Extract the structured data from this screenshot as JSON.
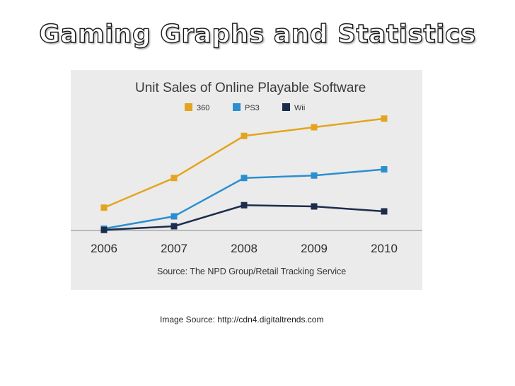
{
  "slide": {
    "title": "Gaming Graphs and Statistics",
    "caption": "Image Source:  http://cdn4.digitaltrends.com"
  },
  "chart_data": {
    "type": "line",
    "title": "Unit Sales of Online Playable Software",
    "xlabel": "",
    "ylabel": "",
    "source": "Source: The NPD Group/Retail Tracking Service",
    "x": [
      "2006",
      "2007",
      "2008",
      "2009",
      "2010"
    ],
    "ylim": [
      0,
      100
    ],
    "grid": false,
    "legend_position": "top",
    "series": [
      {
        "name": "360",
        "color": "#e3a51f",
        "values": [
          19,
          43,
          77,
          84,
          91
        ]
      },
      {
        "name": "PS3",
        "color": "#2b8fcf",
        "values": [
          2,
          12,
          43,
          45,
          50
        ]
      },
      {
        "name": "Wii",
        "color": "#1c2c4c",
        "values": [
          1,
          4,
          21,
          20,
          16
        ]
      }
    ]
  }
}
